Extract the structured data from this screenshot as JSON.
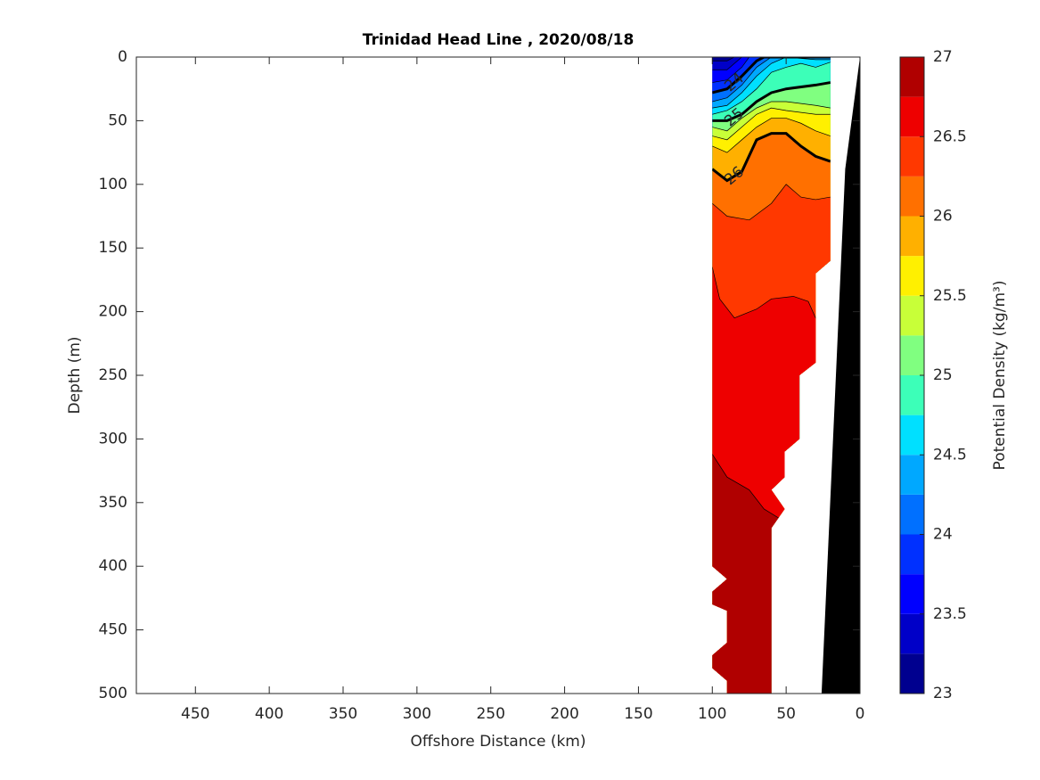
{
  "chart_data": {
    "type": "contour",
    "title": "Trinidad Head Line , 2020/08/18",
    "x_label": "Offshore Distance (km)",
    "y_label": "Depth (m)",
    "xlim": [
      490,
      0
    ],
    "xticks": [
      450,
      400,
      350,
      300,
      250,
      200,
      150,
      100,
      50,
      0
    ],
    "ylim": [
      0,
      500
    ],
    "yticks": [
      0,
      50,
      100,
      150,
      200,
      250,
      300,
      350,
      400,
      450,
      500
    ],
    "colorbar": {
      "label": "Potential Density (kg/m³)",
      "levels": [
        23,
        23.25,
        23.5,
        23.75,
        24,
        24.25,
        24.5,
        24.75,
        25,
        25.25,
        25.5,
        25.75,
        26,
        26.25,
        26.5,
        26.75,
        27
      ],
      "colors": [
        "#00008f",
        "#0000c8",
        "#0000ff",
        "#0030ff",
        "#0070ff",
        "#00a8ff",
        "#00e0ff",
        "#3cffb8",
        "#80ff80",
        "#c8ff38",
        "#fff000",
        "#ffb000",
        "#ff7000",
        "#ff3800",
        "#ee0000",
        "#b00000"
      ],
      "ticks": [
        23,
        23.5,
        24,
        24.5,
        25,
        25.5,
        26,
        26.5,
        27
      ]
    },
    "data_outline": {
      "x": [
        100,
        20,
        20,
        30,
        30,
        41,
        41,
        51,
        51,
        60,
        51,
        60,
        60,
        90,
        90,
        100,
        100,
        90,
        90,
        100,
        100,
        90,
        100
      ],
      "depth": [
        0,
        0,
        160,
        170,
        240,
        250,
        300,
        310,
        330,
        340,
        355,
        370,
        500,
        500,
        490,
        480,
        470,
        460,
        435,
        430,
        420,
        410,
        400
      ]
    },
    "bathymetry": {
      "x": [
        0,
        10,
        26,
        0
      ],
      "depth": [
        0,
        88,
        500,
        500
      ]
    },
    "contours": [
      {
        "level": 23.25,
        "x": [
          100,
          90,
          85,
          20
        ],
        "depth": [
          3,
          3,
          0,
          0
        ]
      },
      {
        "level": 23.5,
        "x": [
          100,
          90,
          80,
          20
        ],
        "depth": [
          10,
          10,
          0,
          0
        ]
      },
      {
        "level": 23.75,
        "x": [
          100,
          90,
          80,
          75,
          20
        ],
        "depth": [
          20,
          18,
          8,
          0,
          0
        ]
      },
      {
        "level": 24,
        "x": [
          100,
          90,
          80,
          70,
          65,
          20
        ],
        "depth": [
          28,
          25,
          15,
          3,
          0,
          0
        ]
      },
      {
        "level": 24.25,
        "x": [
          100,
          90,
          80,
          70,
          60,
          20
        ],
        "depth": [
          35,
          32,
          22,
          8,
          0,
          0
        ]
      },
      {
        "level": 24.5,
        "x": [
          100,
          90,
          80,
          70,
          60,
          50,
          30,
          20
        ],
        "depth": [
          40,
          38,
          28,
          15,
          5,
          0,
          2,
          2
        ]
      },
      {
        "level": 24.75,
        "x": [
          100,
          90,
          80,
          70,
          60,
          50,
          40,
          30,
          20
        ],
        "depth": [
          45,
          42,
          35,
          25,
          12,
          8,
          5,
          8,
          4
        ]
      },
      {
        "level": 25,
        "x": [
          100,
          90,
          80,
          70,
          60,
          50,
          30,
          20
        ],
        "depth": [
          50,
          50,
          45,
          35,
          28,
          25,
          22,
          20
        ]
      },
      {
        "level": 25.25,
        "x": [
          100,
          90,
          80,
          70,
          60,
          50,
          30,
          20
        ],
        "depth": [
          55,
          58,
          48,
          40,
          35,
          35,
          38,
          40
        ]
      },
      {
        "level": 25.5,
        "x": [
          100,
          90,
          80,
          70,
          60,
          50,
          30,
          20
        ],
        "depth": [
          62,
          65,
          55,
          45,
          40,
          42,
          45,
          45
        ]
      },
      {
        "level": 25.75,
        "x": [
          100,
          90,
          80,
          70,
          60,
          50,
          40,
          30,
          20
        ],
        "depth": [
          70,
          75,
          65,
          55,
          48,
          48,
          52,
          58,
          62
        ]
      },
      {
        "level": 26,
        "x": [
          100,
          90,
          80,
          70,
          60,
          50,
          40,
          30,
          20
        ],
        "depth": [
          88,
          97,
          90,
          65,
          60,
          60,
          70,
          78,
          82
        ]
      },
      {
        "level": 26.25,
        "x": [
          100,
          90,
          75,
          60,
          50,
          40,
          30,
          20
        ],
        "depth": [
          115,
          125,
          128,
          115,
          100,
          110,
          112,
          110
        ]
      },
      {
        "level": 26.5,
        "x": [
          100,
          95,
          85,
          70,
          60,
          45,
          35,
          30,
          20
        ],
        "depth": [
          165,
          190,
          205,
          198,
          190,
          188,
          192,
          205,
          205
        ]
      },
      {
        "level": 26.75,
        "x": [
          100,
          90,
          75,
          65,
          51,
          20
        ],
        "depth": [
          312,
          330,
          340,
          355,
          365,
          370
        ]
      }
    ]
  }
}
